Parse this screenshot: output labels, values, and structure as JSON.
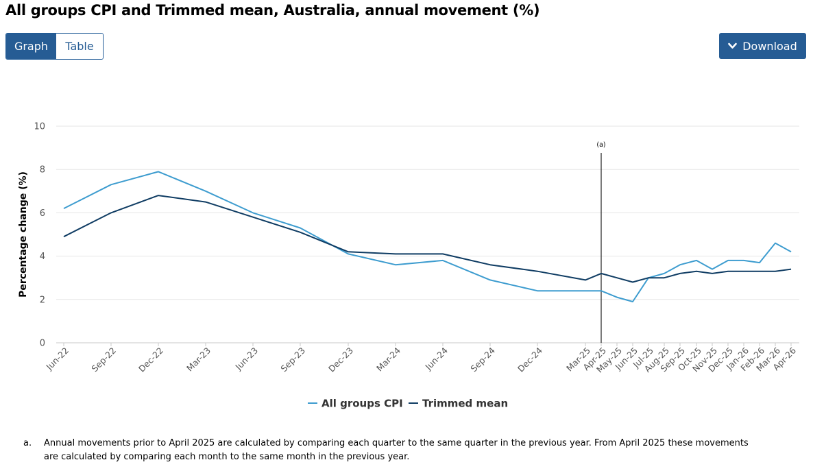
{
  "page": {
    "title": "All groups CPI and Trimmed mean, Australia, annual movement (%)"
  },
  "controls": {
    "graph_label": "Graph",
    "table_label": "Table",
    "download_label": "Download",
    "download_icon": "chevron-down-icon"
  },
  "colors": {
    "cpi": "#3d9ccf",
    "trimmed": "#0f3c63",
    "button_bg": "#265c94"
  },
  "chart_data": {
    "type": "line",
    "title": "",
    "xlabel": "",
    "ylabel": "Percentage change (%)",
    "ylim": [
      0,
      10
    ],
    "yticks": [
      0,
      2,
      4,
      6,
      8,
      10
    ],
    "grid": true,
    "legend_position": "bottom-center",
    "categories": [
      "Jun-22",
      "Sep-22",
      "Dec-22",
      "Mar-23",
      "Jun-23",
      "Sep-23",
      "Dec-23",
      "Mar-24",
      "Jun-24",
      "Sep-24",
      "Dec-24",
      "Mar-25",
      "Apr-25",
      "May-25",
      "Jun-25",
      "Jul-25",
      "Aug-25",
      "Sep-25",
      "Oct-25",
      "Nov-25",
      "Dec-25",
      "Jan-26",
      "Feb-26",
      "Mar-26",
      "Apr-26"
    ],
    "series": [
      {
        "name": "All groups CPI",
        "color": "#3d9ccf",
        "values": [
          6.2,
          7.3,
          7.9,
          7.0,
          6.0,
          5.3,
          4.1,
          3.6,
          3.8,
          2.9,
          2.4,
          2.4,
          2.4,
          2.1,
          1.9,
          3.0,
          3.2,
          3.6,
          3.8,
          3.4,
          3.8,
          3.8,
          3.7,
          4.6,
          4.2
        ]
      },
      {
        "name": "Trimmed mean",
        "color": "#0f3c63",
        "values": [
          4.9,
          6.0,
          6.8,
          6.5,
          5.8,
          5.1,
          4.2,
          4.1,
          4.1,
          3.6,
          3.3,
          2.9,
          3.2,
          3.0,
          2.8,
          3.0,
          3.0,
          3.2,
          3.3,
          3.2,
          3.3,
          3.3,
          3.3,
          3.3,
          3.4
        ]
      }
    ],
    "annotations": [
      {
        "label": "(a)",
        "at_category": "Apr-25"
      }
    ]
  },
  "footnote": {
    "marker": "a.",
    "text": "Annual movements prior to April 2025 are calculated by comparing each quarter to the same quarter in the previous year.  From April 2025 these movements are calculated by comparing each month to the same month in the previous year."
  }
}
